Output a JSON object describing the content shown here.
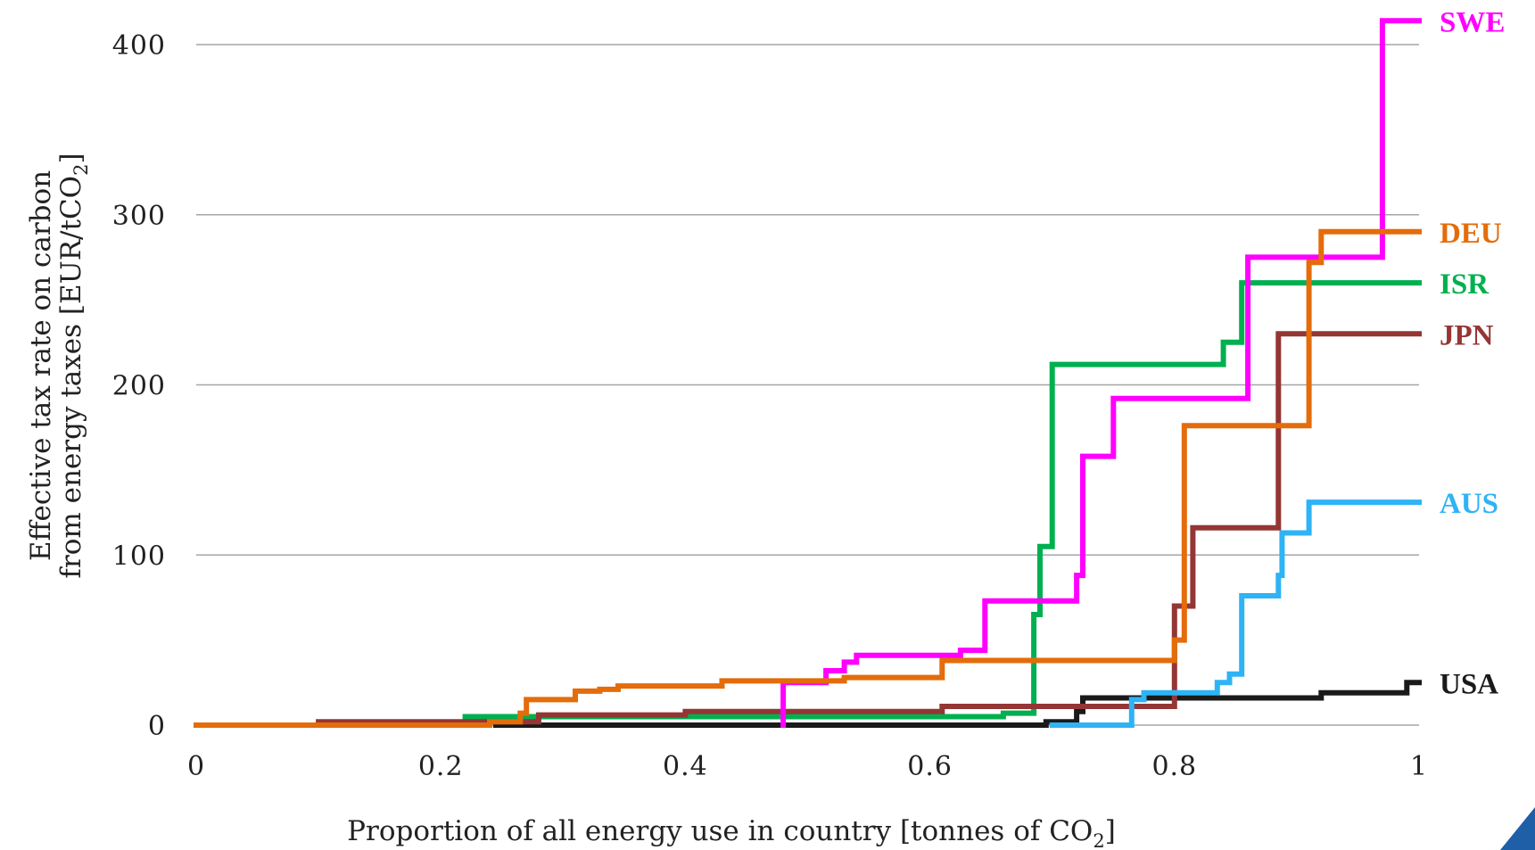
{
  "chart_data": {
    "type": "line",
    "step": true,
    "xlabel": {
      "pre": "Proportion of all energy use in country [tonnes of CO",
      "sub": "2",
      "post": "]"
    },
    "ylabel": {
      "line1": "Effective tax rate on carbon",
      "line2_pre": "from energy taxes [EUR/tCO",
      "line2_sub": "2",
      "line2_post": "]"
    },
    "xlim": [
      0,
      1
    ],
    "ylim": [
      0,
      400
    ],
    "xticks": [
      0,
      0.2,
      0.4,
      0.6,
      0.8,
      1
    ],
    "xtick_labels": [
      "0",
      "0.2",
      "0.4",
      "0.6",
      "0.8",
      "1"
    ],
    "yticks": [
      0,
      100,
      200,
      300,
      400
    ],
    "ytick_labels": [
      "0",
      "100",
      "200",
      "300",
      "400"
    ],
    "grid": true,
    "series": [
      {
        "name": "USA",
        "color": "#1a1a1a",
        "x": [
          0.245,
          0.695,
          0.695,
          0.72,
          0.72,
          0.725,
          0.725,
          0.92,
          0.92,
          0.99,
          0.99,
          1.0
        ],
        "y": [
          0,
          0,
          2,
          2,
          8,
          8,
          16,
          16,
          19,
          19,
          25,
          25
        ]
      },
      {
        "name": "ISR",
        "color": "#00b050",
        "x": [
          0,
          0.22,
          0.22,
          0.66,
          0.66,
          0.685,
          0.685,
          0.69,
          0.69,
          0.695,
          0.695,
          0.7,
          0.7,
          0.84,
          0.84,
          0.855,
          0.855,
          1.0
        ],
        "y": [
          0,
          0,
          5,
          5,
          7,
          7,
          65,
          65,
          105,
          105,
          105,
          105,
          212,
          212,
          225,
          225,
          260,
          260
        ]
      },
      {
        "name": "JPN",
        "color": "#943634",
        "x": [
          0,
          0.1,
          0.1,
          0.28,
          0.28,
          0.4,
          0.4,
          0.61,
          0.61,
          0.8,
          0.8,
          0.805,
          0.805,
          0.815,
          0.815,
          0.885,
          0.885,
          1.0
        ],
        "y": [
          0,
          0,
          2,
          2,
          6,
          6,
          8,
          8,
          11,
          11,
          70,
          70,
          70,
          70,
          116,
          116,
          230,
          230
        ]
      },
      {
        "name": "AUS",
        "color": "#2eb3f5",
        "x": [
          0.7,
          0.765,
          0.765,
          0.775,
          0.775,
          0.835,
          0.835,
          0.845,
          0.845,
          0.855,
          0.855,
          0.885,
          0.885,
          0.888,
          0.888,
          0.91,
          0.91,
          1.0
        ],
        "y": [
          0,
          0,
          15,
          15,
          19,
          19,
          25,
          25,
          30,
          30,
          76,
          76,
          88,
          88,
          113,
          113,
          131,
          131
        ]
      },
      {
        "name": "SWE",
        "color": "#ff00ff",
        "x": [
          0.48,
          0.48,
          0.515,
          0.515,
          0.53,
          0.53,
          0.54,
          0.54,
          0.625,
          0.625,
          0.645,
          0.645,
          0.72,
          0.72,
          0.725,
          0.725,
          0.75,
          0.75,
          0.86,
          0.86,
          0.97,
          0.97,
          1.0
        ],
        "y": [
          0,
          25,
          25,
          32,
          32,
          37,
          37,
          41,
          41,
          44,
          44,
          73,
          73,
          88,
          88,
          158,
          158,
          192,
          192,
          275,
          275,
          414,
          414
        ]
      },
      {
        "name": "DEU",
        "color": "#e46c0a",
        "x": [
          0,
          0.24,
          0.24,
          0.265,
          0.265,
          0.27,
          0.27,
          0.31,
          0.31,
          0.33,
          0.33,
          0.345,
          0.345,
          0.43,
          0.43,
          0.53,
          0.53,
          0.61,
          0.61,
          0.8,
          0.8,
          0.808,
          0.808,
          0.91,
          0.91,
          0.92,
          0.92,
          1.0
        ],
        "y": [
          0,
          0,
          2,
          2,
          7,
          7,
          15,
          15,
          20,
          20,
          21,
          21,
          23,
          23,
          26,
          26,
          28,
          28,
          38,
          38,
          50,
          50,
          176,
          176,
          272,
          272,
          290,
          290
        ]
      }
    ]
  }
}
